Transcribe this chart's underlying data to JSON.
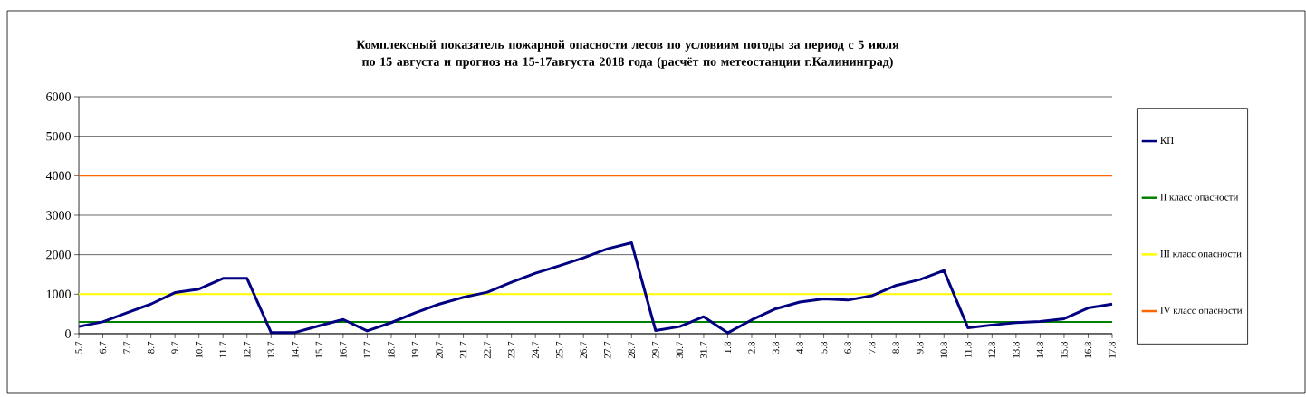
{
  "chart_data": {
    "type": "line",
    "title": "Комплексный показатель пожарной опасности лесов по условиям погоды за период с 5 июля по 15 августа и прогноз на 15-17августа 2018 года (расчёт по метеостанции г.Калининград)",
    "categories": [
      "5.7",
      "6.7",
      "7.7",
      "8.7",
      "9.7",
      "10.7",
      "11.7",
      "12.7",
      "13.7",
      "14.7",
      "15.7",
      "16.7",
      "17.7",
      "18.7",
      "19.7",
      "20.7",
      "21.7",
      "22.7",
      "23.7",
      "24.7",
      "25.7",
      "26.7",
      "27.7",
      "28.7",
      "29.7",
      "30.7",
      "31.7",
      "1.8",
      "2.8",
      "3.8",
      "4.8",
      "5.8",
      "6.8",
      "7.8",
      "8.8",
      "9.8",
      "10.8",
      "11.8",
      "12.8",
      "13.8",
      "14.8",
      "15.8",
      "16.8",
      "17.8"
    ],
    "series": [
      {
        "name": "КП",
        "color": "#000080",
        "values": [
          180,
          300,
          530,
          750,
          1040,
          1130,
          1400,
          1400,
          30,
          30,
          200,
          360,
          70,
          280,
          530,
          750,
          920,
          1050,
          1300,
          1530,
          1720,
          1920,
          2150,
          2300,
          80,
          180,
          430,
          20,
          350,
          630,
          800,
          880,
          850,
          960,
          1220,
          1370,
          1600,
          150,
          220,
          280,
          310,
          380,
          650,
          750
        ]
      },
      {
        "name": "II   класс опасности",
        "color": "#008000",
        "values": [
          300,
          300,
          300,
          300,
          300,
          300,
          300,
          300,
          300,
          300,
          300,
          300,
          300,
          300,
          300,
          300,
          300,
          300,
          300,
          300,
          300,
          300,
          300,
          300,
          300,
          300,
          300,
          300,
          300,
          300,
          300,
          300,
          300,
          300,
          300,
          300,
          300,
          300,
          300,
          300,
          300,
          300,
          300,
          300
        ]
      },
      {
        "name": "III класс опасности",
        "color": "#ffff00",
        "values": [
          1000,
          1000,
          1000,
          1000,
          1000,
          1000,
          1000,
          1000,
          1000,
          1000,
          1000,
          1000,
          1000,
          1000,
          1000,
          1000,
          1000,
          1000,
          1000,
          1000,
          1000,
          1000,
          1000,
          1000,
          1000,
          1000,
          1000,
          1000,
          1000,
          1000,
          1000,
          1000,
          1000,
          1000,
          1000,
          1000,
          1000,
          1000,
          1000,
          1000,
          1000,
          1000,
          1000,
          1000
        ]
      },
      {
        "name": "IV класс опасности",
        "color": "#ff6600",
        "values": [
          4000,
          4000,
          4000,
          4000,
          4000,
          4000,
          4000,
          4000,
          4000,
          4000,
          4000,
          4000,
          4000,
          4000,
          4000,
          4000,
          4000,
          4000,
          4000,
          4000,
          4000,
          4000,
          4000,
          4000,
          4000,
          4000,
          4000,
          4000,
          4000,
          4000,
          4000,
          4000,
          4000,
          4000,
          4000,
          4000,
          4000,
          4000,
          4000,
          4000,
          4000,
          4000,
          4000,
          4000
        ]
      }
    ],
    "ylim": [
      0,
      6000
    ],
    "yticks": [
      0,
      1000,
      2000,
      3000,
      4000,
      5000,
      6000
    ],
    "grid": "y",
    "legend": "right",
    "marker": "none",
    "line_style": "solid"
  }
}
